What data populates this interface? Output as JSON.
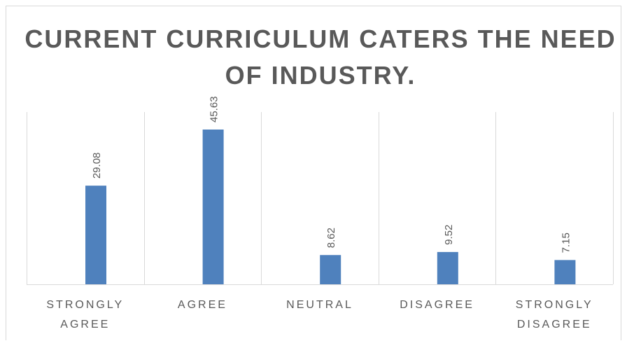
{
  "chart_data": {
    "type": "bar",
    "title": "CURRENT CURRICULUM CATERS THE NEED OF INDUSTRY.",
    "categories": [
      [
        "STRONGLY",
        "AGREE"
      ],
      [
        "AGREE"
      ],
      [
        "NEUTRAL"
      ],
      [
        "DISAGREE"
      ],
      [
        "STRONGLY",
        "DISAGREE"
      ]
    ],
    "values": [
      29.08,
      45.63,
      8.62,
      9.52,
      7.15
    ],
    "value_labels": [
      "29.08",
      "45.63",
      "8.62",
      "9.52",
      "7.15"
    ],
    "xlabel": "",
    "ylabel": "",
    "ylim": [
      0,
      50
    ],
    "grid": "vertical category separators",
    "legend": "none",
    "colors": {
      "bar": "#4f81bd",
      "title": "#595959",
      "labels": "#595959",
      "grid": "#d9d9d9"
    }
  }
}
